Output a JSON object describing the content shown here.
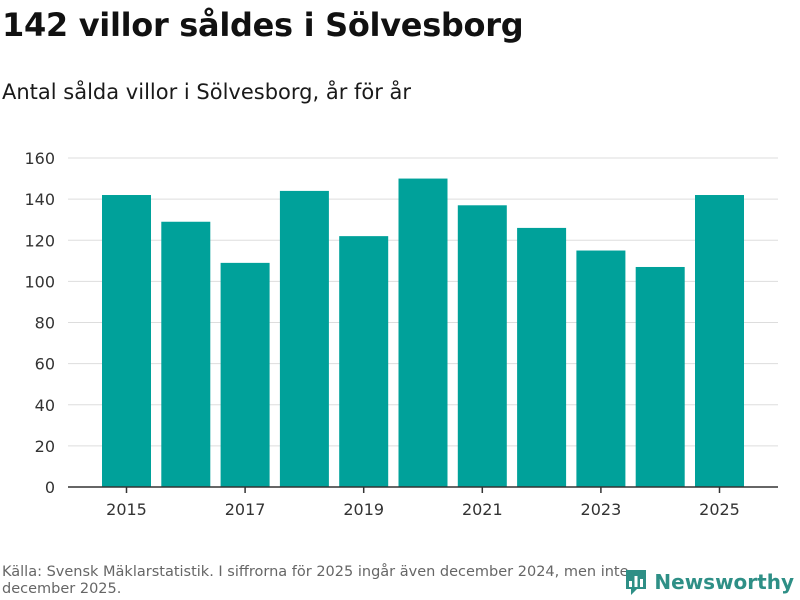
{
  "header": {
    "title": "142 villor såldes i Sölvesborg",
    "subtitle": "Antal sålda villor i Sölvesborg, år för år"
  },
  "footer": {
    "source": "Källa: Svensk Mäklarstatistik. I siffrorna för 2025 ingår även december 2024, men inte december 2025.",
    "brand": "Newsworthy"
  },
  "colors": {
    "bar": "#00a19a",
    "grid": "#dddddd",
    "axis": "#333333",
    "brand": "#2e8f86"
  },
  "chart_data": {
    "type": "bar",
    "title": "Antal sålda villor i Sölvesborg, år för år",
    "xlabel": "",
    "ylabel": "",
    "categories": [
      "2015",
      "2016",
      "2017",
      "2018",
      "2019",
      "2020",
      "2021",
      "2022",
      "2023",
      "2024",
      "2025"
    ],
    "values": [
      142,
      129,
      109,
      144,
      122,
      150,
      137,
      126,
      115,
      107,
      142
    ],
    "x_tick_labels": [
      "2015",
      "2017",
      "2019",
      "2021",
      "2023",
      "2025"
    ],
    "y_ticks": [
      0,
      20,
      40,
      60,
      80,
      100,
      120,
      140,
      160
    ],
    "ylim": [
      0,
      160
    ],
    "grid": true
  }
}
